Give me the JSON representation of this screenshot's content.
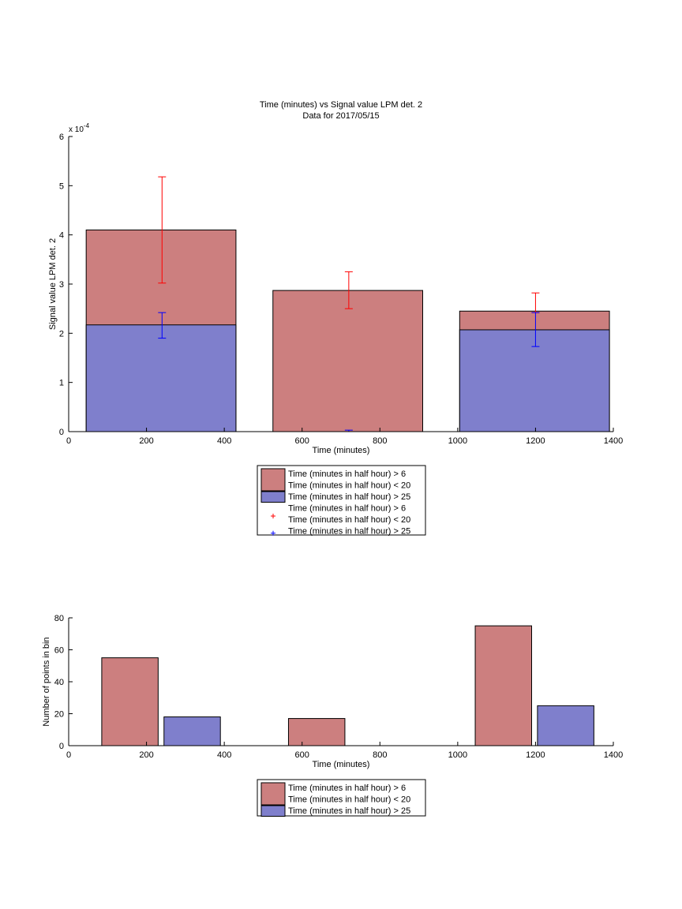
{
  "chart_data": [
    {
      "type": "bar",
      "title": "Time (minutes) vs Signal value LPM det. 2",
      "subtitle": "Data for 2017/05/15",
      "xlabel": "Time (minutes)",
      "ylabel": "Signal value LPM det. 2",
      "exponent_label": "x 10",
      "exponent_power": "-4",
      "xlim": [
        0,
        1400
      ],
      "ylim": [
        0,
        6
      ],
      "x_ticks": [
        "0",
        "200",
        "400",
        "600",
        "800",
        "1000",
        "1200",
        "1400"
      ],
      "y_ticks": [
        "0",
        "1",
        "2",
        "3",
        "4",
        "5",
        "6"
      ],
      "bars": [
        {
          "series": "red",
          "x0": 45,
          "x1": 430,
          "value": 4.1
        },
        {
          "series": "blue",
          "x0": 45,
          "x1": 430,
          "value": 2.17
        },
        {
          "series": "red",
          "x0": 525,
          "x1": 910,
          "value": 2.87
        },
        {
          "series": "red",
          "x0": 1005,
          "x1": 1390,
          "value": 2.45
        },
        {
          "series": "blue",
          "x0": 1005,
          "x1": 1390,
          "value": 2.07
        }
      ],
      "error_bars": [
        {
          "series": "red",
          "x": 240,
          "low": 3.02,
          "high": 5.18
        },
        {
          "series": "blue",
          "x": 240,
          "low": 1.9,
          "high": 2.42
        },
        {
          "series": "red",
          "x": 720,
          "low": 2.5,
          "high": 3.25
        },
        {
          "series": "blue",
          "x": 720,
          "low": 0.0,
          "high": 0.03
        },
        {
          "series": "red",
          "x": 1200,
          "low": 2.42,
          "high": 2.82
        },
        {
          "series": "blue",
          "x": 1200,
          "low": 1.73,
          "high": 2.42
        }
      ],
      "legend": {
        "placement": "below",
        "entries": [
          {
            "kind": "patch",
            "color": "#cc7f7f",
            "lines": [
              "Time (minutes in half hour) > 6",
              "Time (minutes in half hour) < 20"
            ]
          },
          {
            "kind": "patch",
            "color": "#7f7fcc",
            "lines": [
              "Time (minutes in half hour) > 25"
            ]
          },
          {
            "kind": "marker",
            "color": "#ff0000",
            "lines": [
              "Time (minutes in half hour) > 6",
              "Time (minutes in half hour) < 20"
            ]
          },
          {
            "kind": "marker",
            "color": "#0000ff",
            "lines": [
              "Time (minutes in half hour) > 25"
            ]
          }
        ]
      }
    },
    {
      "type": "bar",
      "xlabel": "Time (minutes)",
      "ylabel": "Number of points in bin",
      "xlim": [
        0,
        1400
      ],
      "ylim": [
        0,
        80
      ],
      "x_ticks": [
        "0",
        "200",
        "400",
        "600",
        "800",
        "1000",
        "1200",
        "1400"
      ],
      "y_ticks": [
        "0",
        "20",
        "40",
        "60",
        "80"
      ],
      "bars": [
        {
          "series": "red",
          "x0": 85,
          "x1": 230,
          "value": 55
        },
        {
          "series": "blue",
          "x0": 245,
          "x1": 390,
          "value": 18
        },
        {
          "series": "red",
          "x0": 565,
          "x1": 710,
          "value": 17
        },
        {
          "series": "red",
          "x0": 1045,
          "x1": 1190,
          "value": 75
        },
        {
          "series": "blue",
          "x0": 1205,
          "x1": 1350,
          "value": 25
        }
      ],
      "legend": {
        "placement": "below",
        "entries": [
          {
            "kind": "patch",
            "color": "#cc7f7f",
            "lines": [
              "Time (minutes in half hour) > 6",
              "Time (minutes in half hour) < 20"
            ]
          },
          {
            "kind": "patch",
            "color": "#7f7fcc",
            "lines": [
              "Time (minutes in half hour) > 25"
            ]
          }
        ]
      }
    }
  ],
  "colors": {
    "red_bar": "#cc7f7f",
    "blue_bar": "#7f7fcc",
    "red_error": "#ff0000",
    "blue_error": "#0000ff"
  }
}
